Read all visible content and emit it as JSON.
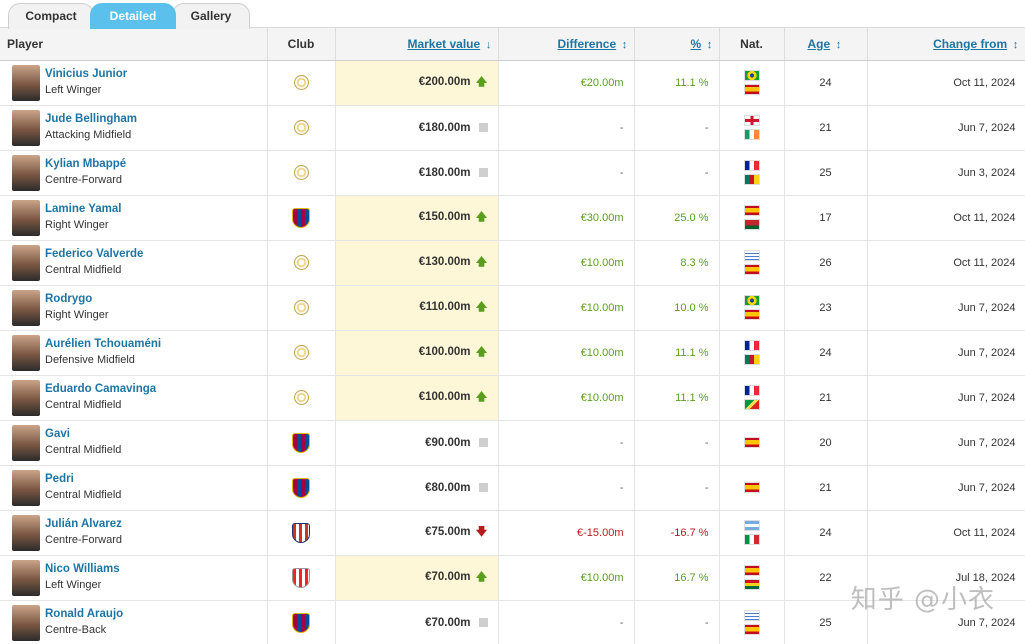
{
  "tabs": [
    "Compact",
    "Detailed",
    "Gallery"
  ],
  "active_tab": "Detailed",
  "columns": {
    "player": "Player",
    "club": "Club",
    "market_value": "Market value",
    "difference": "Difference",
    "percent": "%",
    "nat": "Nat.",
    "age": "Age",
    "change_from": "Change from"
  },
  "icons": {
    "sort_desc": "↓",
    "sort_both": "↕",
    "up": "🡅",
    "down": "🡇"
  },
  "rows": [
    {
      "name": "Vinicius Junior",
      "position": "Left Winger",
      "club": "rma",
      "value": "€200.00m",
      "trend": "up",
      "diff": "€20.00m",
      "pct": "11.1 %",
      "flags": [
        "br",
        "es"
      ],
      "age": "24",
      "date": "Oct 11, 2024"
    },
    {
      "name": "Jude Bellingham",
      "position": "Attacking Midfield",
      "club": "rma",
      "value": "€180.00m",
      "trend": "same",
      "diff": "-",
      "pct": "-",
      "flags": [
        "en",
        "ie"
      ],
      "age": "21",
      "date": "Jun 7, 2024"
    },
    {
      "name": "Kylian Mbappé",
      "position": "Centre-Forward",
      "club": "rma",
      "value": "€180.00m",
      "trend": "same",
      "diff": "-",
      "pct": "-",
      "flags": [
        "fr",
        "cm"
      ],
      "age": "25",
      "date": "Jun 3, 2024"
    },
    {
      "name": "Lamine Yamal",
      "position": "Right Winger",
      "club": "fcb",
      "value": "€150.00m",
      "trend": "up",
      "diff": "€30.00m",
      "pct": "25.0 %",
      "flags": [
        "es",
        "ma"
      ],
      "age": "17",
      "date": "Oct 11, 2024"
    },
    {
      "name": "Federico Valverde",
      "position": "Central Midfield",
      "club": "rma",
      "value": "€130.00m",
      "trend": "up",
      "diff": "€10.00m",
      "pct": "8.3 %",
      "flags": [
        "uy",
        "es"
      ],
      "age": "26",
      "date": "Oct 11, 2024"
    },
    {
      "name": "Rodrygo",
      "position": "Right Winger",
      "club": "rma",
      "value": "€110.00m",
      "trend": "up",
      "diff": "€10.00m",
      "pct": "10.0 %",
      "flags": [
        "br",
        "es"
      ],
      "age": "23",
      "date": "Jun 7, 2024"
    },
    {
      "name": "Aurélien Tchouaméni",
      "position": "Defensive Midfield",
      "club": "rma",
      "value": "€100.00m",
      "trend": "up",
      "diff": "€10.00m",
      "pct": "11.1 %",
      "flags": [
        "fr",
        "cm"
      ],
      "age": "24",
      "date": "Jun 7, 2024"
    },
    {
      "name": "Eduardo Camavinga",
      "position": "Central Midfield",
      "club": "rma",
      "value": "€100.00m",
      "trend": "up",
      "diff": "€10.00m",
      "pct": "11.1 %",
      "flags": [
        "fr",
        "cg"
      ],
      "age": "21",
      "date": "Jun 7, 2024"
    },
    {
      "name": "Gavi",
      "position": "Central Midfield",
      "club": "fcb",
      "value": "€90.00m",
      "trend": "same",
      "diff": "-",
      "pct": "-",
      "flags": [
        "es"
      ],
      "age": "20",
      "date": "Jun 7, 2024"
    },
    {
      "name": "Pedri",
      "position": "Central Midfield",
      "club": "fcb",
      "value": "€80.00m",
      "trend": "same",
      "diff": "-",
      "pct": "-",
      "flags": [
        "es"
      ],
      "age": "21",
      "date": "Jun 7, 2024"
    },
    {
      "name": "Julián Alvarez",
      "position": "Centre-Forward",
      "club": "atm",
      "value": "€75.00m",
      "trend": "down",
      "diff": "€-15.00m",
      "pct": "-16.7 %",
      "flags": [
        "ar",
        "it"
      ],
      "age": "24",
      "date": "Oct 11, 2024"
    },
    {
      "name": "Nico Williams",
      "position": "Left Winger",
      "club": "ath",
      "value": "€70.00m",
      "trend": "up",
      "diff": "€10.00m",
      "pct": "16.7 %",
      "flags": [
        "es",
        "gh"
      ],
      "age": "22",
      "date": "Jul 18, 2024"
    },
    {
      "name": "Ronald Araujo",
      "position": "Centre-Back",
      "club": "fcb",
      "value": "€70.00m",
      "trend": "same",
      "diff": "-",
      "pct": "-",
      "flags": [
        "uy",
        "es"
      ],
      "age": "25",
      "date": "Jun 7, 2024"
    }
  ],
  "watermark": "知乎 @小衣"
}
